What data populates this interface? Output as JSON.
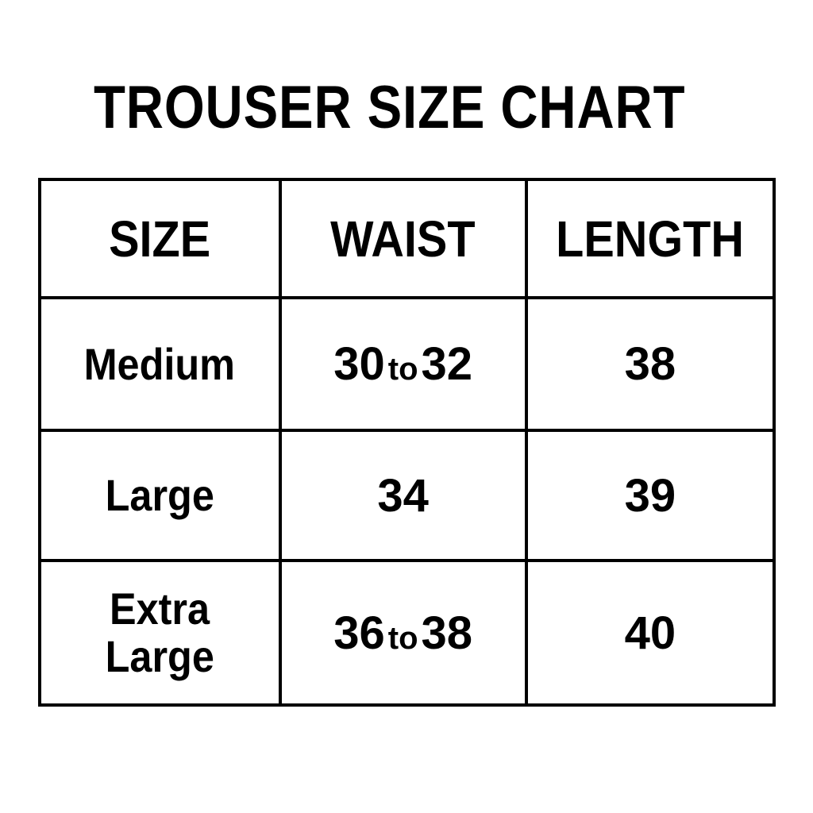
{
  "title": "TROUSER SIZE CHART",
  "table": {
    "headers": [
      "SIZE",
      "WAIST",
      "LENGTH"
    ],
    "rows": [
      {
        "size": "Medium",
        "waist_from": "30",
        "waist_sep": "to",
        "waist_to": "32",
        "length": "38"
      },
      {
        "size": "Large",
        "waist": "34",
        "length": "39"
      },
      {
        "size_line1": "Extra",
        "size_line2": "Large",
        "waist_from": "36",
        "waist_sep": "to",
        "waist_to": "38",
        "length": "40"
      }
    ]
  }
}
